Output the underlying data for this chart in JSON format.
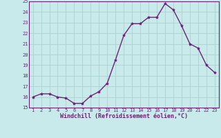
{
  "x": [
    1,
    2,
    3,
    4,
    5,
    6,
    7,
    8,
    9,
    10,
    11,
    12,
    13,
    14,
    15,
    16,
    17,
    18,
    19,
    20,
    21,
    22,
    23
  ],
  "y": [
    16.0,
    16.3,
    16.3,
    16.0,
    15.9,
    15.4,
    15.4,
    16.1,
    16.5,
    17.3,
    19.5,
    21.8,
    22.9,
    22.9,
    23.5,
    23.5,
    24.8,
    24.2,
    22.7,
    21.0,
    20.6,
    19.0,
    18.3
  ],
  "xlabel": "Windchill (Refroidissement éolien,°C)",
  "ylim": [
    15,
    25
  ],
  "yticks": [
    15,
    16,
    17,
    18,
    19,
    20,
    21,
    22,
    23,
    24,
    25
  ],
  "xticks": [
    1,
    2,
    3,
    4,
    5,
    6,
    7,
    8,
    9,
    10,
    11,
    12,
    13,
    14,
    15,
    16,
    17,
    18,
    19,
    20,
    21,
    22,
    23
  ],
  "line_color": "#6b2275",
  "marker": "*",
  "bg_color": "#c8eaea",
  "grid_color": "#aad0d0",
  "tick_color": "#6b2275",
  "label_color": "#6b2275",
  "spine_color": "#6b2275",
  "tick_fontsize": 5.0,
  "label_fontsize": 6.0
}
